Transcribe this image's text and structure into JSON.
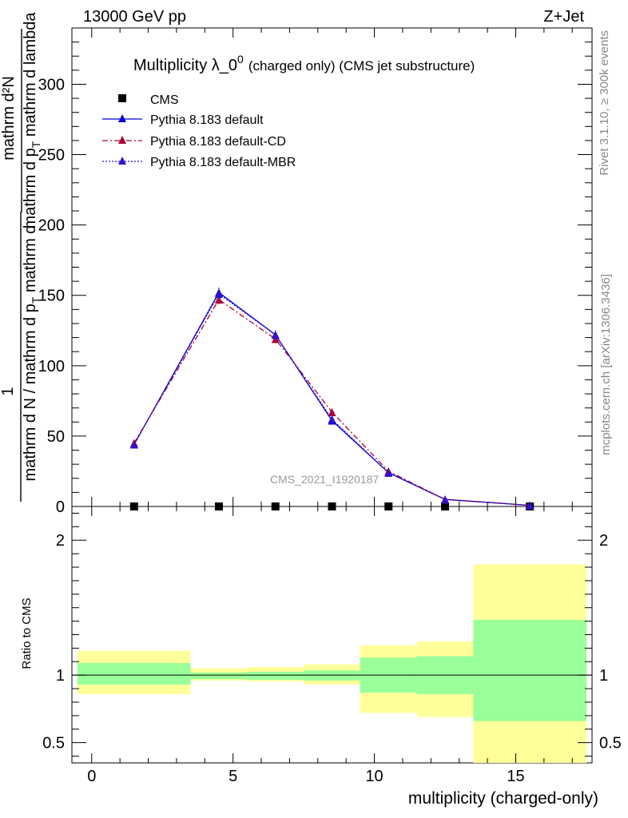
{
  "header": {
    "left": "13000 GeV pp",
    "right": "Z+Jet"
  },
  "side_labels": {
    "rivet": "Rivet 3.1.10, ≥ 300k events",
    "mcplots": "mcplots.cern.ch [arXiv:1306.3436]"
  },
  "chart_data": [
    {
      "type": "line",
      "title_main": "Multiplicity λ_0",
      "title_sup": "0",
      "title_sub": "(charged only) (CMS jet substructure)",
      "watermark": "CMS_2021_I1920187",
      "ylabel_parts": {
        "num_one": "1",
        "num_frac_top": "mathrm d²N",
        "num_frac_bottom": "mathrm d p",
        "num_frac_bottom_sub": "T",
        "num_frac_bottom_rest": " mathrm d lambda",
        "den": "mathrm d N / mathrm d p",
        "den_sub": "T",
        "den_rest": " mathrm d"
      },
      "xlim": [
        -0.7,
        17.7
      ],
      "ylim": [
        0,
        340
      ],
      "y_ticks": [
        0,
        50,
        100,
        150,
        200,
        250,
        300
      ],
      "y_tick_labels": [
        "0",
        "50",
        "100",
        "150",
        "200",
        "250",
        "300"
      ],
      "legend_location": "top-left",
      "series": [
        {
          "name": "CMS",
          "style": "markers",
          "color": "#000000",
          "marker": "square",
          "x": [
            1.5,
            4.5,
            6.5,
            8.5,
            10.5,
            12.5,
            15.5
          ],
          "y": [
            0,
            0,
            0,
            0,
            0,
            0,
            0
          ]
        },
        {
          "name": "Pythia 8.183 default",
          "style": "solid",
          "color": "#0000cc",
          "marker": "triangle",
          "x": [
            1.5,
            4.5,
            6.5,
            8.5,
            10.5,
            12.5,
            15.5
          ],
          "y": [
            44,
            152,
            122,
            61,
            24,
            5,
            0.8
          ],
          "err": [
            1.5,
            3.5,
            3,
            2.5,
            1.5,
            0.8,
            0.3
          ]
        },
        {
          "name": "Pythia 8.183 default-CD",
          "style": "dashdot",
          "color": "#aa0033",
          "marker": "triangle",
          "x": [
            1.5,
            4.5,
            6.5,
            8.5,
            10.5,
            12.5,
            15.5
          ],
          "y": [
            45,
            147,
            119,
            67,
            25,
            5,
            0.8
          ],
          "err": [
            1.5,
            3.5,
            3,
            2.5,
            1.5,
            0.8,
            0.3
          ]
        },
        {
          "name": "Pythia 8.183 default-MBR",
          "style": "dotted",
          "color": "#3311cc",
          "marker": "triangle",
          "x": [
            1.5,
            4.5,
            6.5,
            8.5,
            10.5,
            12.5,
            15.5
          ],
          "y": [
            44,
            151,
            122,
            62,
            24,
            5,
            0.8
          ],
          "err": [
            1.5,
            3.5,
            3,
            2.5,
            1.5,
            0.8,
            0.3
          ]
        }
      ]
    },
    {
      "type": "area",
      "ylabel": "Ratio to CMS",
      "xlabel": "multiplicity (charged-only)",
      "xlim": [
        -0.7,
        17.7
      ],
      "ylim": [
        0.35,
        2.25
      ],
      "x_ticks": [
        0,
        5,
        10,
        15
      ],
      "x_tick_labels": [
        "0",
        "5",
        "10",
        "15"
      ],
      "y_ticks": [
        0.5,
        1,
        2
      ],
      "y_tick_labels": [
        "0.5",
        "1",
        "2"
      ],
      "reference_line": 1,
      "bands": [
        {
          "x0": -0.5,
          "x1": 3.5,
          "inner": [
            0.93,
            1.09
          ],
          "outer": [
            0.86,
            1.18
          ]
        },
        {
          "x0": 3.5,
          "x1": 5.5,
          "inner": [
            0.97,
            1.02
          ],
          "outer": [
            0.96,
            1.05
          ]
        },
        {
          "x0": 5.5,
          "x1": 7.5,
          "inner": [
            0.965,
            1.025
          ],
          "outer": [
            0.955,
            1.06
          ]
        },
        {
          "x0": 7.5,
          "x1": 9.5,
          "inner": [
            0.96,
            1.035
          ],
          "outer": [
            0.93,
            1.08
          ]
        },
        {
          "x0": 9.5,
          "x1": 11.5,
          "inner": [
            0.87,
            1.13
          ],
          "outer": [
            0.72,
            1.22
          ]
        },
        {
          "x0": 11.5,
          "x1": 13.5,
          "inner": [
            0.86,
            1.14
          ],
          "outer": [
            0.69,
            1.25
          ]
        },
        {
          "x0": 13.5,
          "x1": 17.5,
          "inner": [
            0.66,
            1.41
          ],
          "outer": [
            0.35,
            1.82
          ]
        }
      ],
      "band_colors": {
        "inner": "#99ff99",
        "outer": "#ffff99"
      }
    }
  ]
}
